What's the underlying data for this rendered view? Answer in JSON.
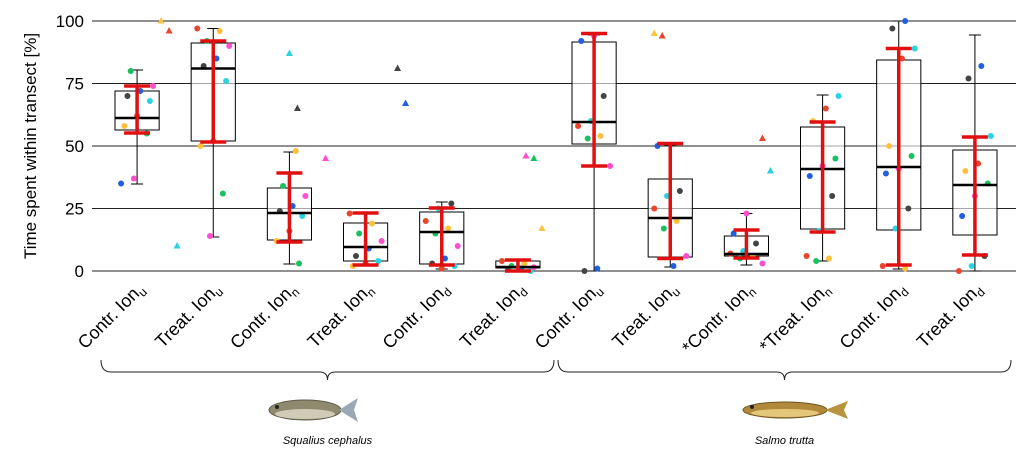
{
  "chart_data": {
    "type": "box",
    "y_label": "Time spent within transect [%]",
    "ylim": [
      0,
      100
    ],
    "yticks": [
      0,
      25,
      50,
      75,
      100
    ],
    "grid": true,
    "categories": [
      "Contr. Ion",
      "Treat. Ion",
      "Contr. Ion",
      "Treat. Ion",
      "Contr. Ion",
      "Treat. Ion",
      "Contr. Ion",
      "Treat. Ion",
      "*Contr. Ion",
      "*Treat. Ion",
      "Contr. Ion",
      "Treat. Ion"
    ],
    "category_subscripts": [
      "u",
      "u",
      "n",
      "n",
      "d",
      "d",
      "u",
      "u",
      "n",
      "n",
      "d",
      "d"
    ],
    "box_color": "#000000",
    "error_color": "#e01010",
    "point_palette": [
      "#1f5fe0",
      "#ff4fcf",
      "#18c060",
      "#ffc13b",
      "#e8452c",
      "#29d3e0",
      "#444444"
    ],
    "groups": [
      {
        "name": "Squalius cephalus",
        "count": 6
      },
      {
        "name": "Salmo trutta",
        "count": 6
      }
    ],
    "boxes": [
      {
        "min": 34.8,
        "q1": 56.4,
        "median": 61.2,
        "q3": 72,
        "max": 80.4,
        "err_low": 55.2,
        "err_high": 74,
        "points": [
          35,
          37,
          55,
          58,
          62,
          68,
          70,
          72,
          74,
          80
        ],
        "outliers": [
          100,
          96,
          10
        ]
      },
      {
        "min": 13.6,
        "q1": 52,
        "median": 81,
        "q3": 91.2,
        "max": 97,
        "err_low": 51.6,
        "err_high": 92,
        "points": [
          14,
          31,
          50,
          52,
          76,
          82,
          85,
          90,
          92,
          96,
          97
        ],
        "outliers": []
      },
      {
        "min": 2.8,
        "q1": 12.4,
        "median": 23.2,
        "q3": 33.2,
        "max": 47.6,
        "err_low": 11.6,
        "err_high": 39.2,
        "points": [
          3,
          12,
          16,
          22,
          24,
          26,
          30,
          34,
          48
        ],
        "outliers": [
          87,
          65
        ]
      },
      {
        "min": 2,
        "q1": 4,
        "median": 9.6,
        "q3": 19.2,
        "max": 22.8,
        "err_low": 2.4,
        "err_high": 23.2,
        "points": [
          2,
          3,
          4,
          6,
          9,
          12,
          15,
          19,
          23
        ],
        "outliers": [
          81,
          67,
          45
        ]
      },
      {
        "min": 0.8,
        "q1": 2.8,
        "median": 15.6,
        "q3": 23.6,
        "max": 27.6,
        "err_low": 2.4,
        "err_high": 25.2,
        "points": [
          1,
          2,
          3,
          5,
          10,
          15,
          17,
          20,
          25,
          27
        ],
        "outliers": []
      },
      {
        "min": 0,
        "q1": 1.2,
        "median": 1.6,
        "q3": 4,
        "max": 4.4,
        "err_low": 0,
        "err_high": 4.4,
        "points": [
          0,
          0.5,
          1,
          1.5,
          2,
          3,
          4
        ],
        "outliers": [
          46,
          45,
          17
        ]
      },
      {
        "min": 0,
        "q1": 50.8,
        "median": 59.6,
        "q3": 91.6,
        "max": 94.4,
        "err_low": 42,
        "err_high": 95,
        "points": [
          0,
          1,
          42,
          53,
          54,
          58,
          60,
          70,
          92,
          94
        ],
        "outliers": []
      },
      {
        "min": 1.6,
        "q1": 5.6,
        "median": 21.2,
        "q3": 36.8,
        "max": 50.4,
        "err_low": 5,
        "err_high": 51,
        "points": [
          2,
          6,
          17,
          20,
          25,
          30,
          32,
          50
        ],
        "outliers": [
          95,
          94
        ]
      },
      {
        "min": 2.4,
        "q1": 6,
        "median": 6.8,
        "q3": 14,
        "max": 23,
        "err_low": 5.2,
        "err_high": 16.4,
        "points": [
          3,
          5,
          6,
          7,
          8,
          11,
          15,
          23
        ],
        "outliers": [
          53,
          40
        ]
      },
      {
        "min": 4,
        "q1": 16.8,
        "median": 40.8,
        "q3": 57.6,
        "max": 70.4,
        "err_low": 15.6,
        "err_high": 59.6,
        "points": [
          4,
          5,
          6,
          16,
          30,
          38,
          42,
          45,
          60,
          65,
          70
        ],
        "outliers": []
      },
      {
        "min": 0.8,
        "q1": 16.4,
        "median": 41.6,
        "q3": 84.4,
        "max": 100,
        "err_low": 2.4,
        "err_high": 89,
        "points": [
          1,
          2,
          17,
          25,
          39,
          41,
          46,
          50,
          85,
          89,
          97,
          100
        ],
        "outliers": []
      },
      {
        "min": 0,
        "q1": 14.4,
        "median": 34.4,
        "q3": 48.4,
        "max": 94.4,
        "err_low": 6.4,
        "err_high": 53.6,
        "points": [
          0,
          2,
          6,
          22,
          30,
          35,
          40,
          43,
          54,
          77,
          82
        ],
        "outliers": []
      }
    ]
  }
}
